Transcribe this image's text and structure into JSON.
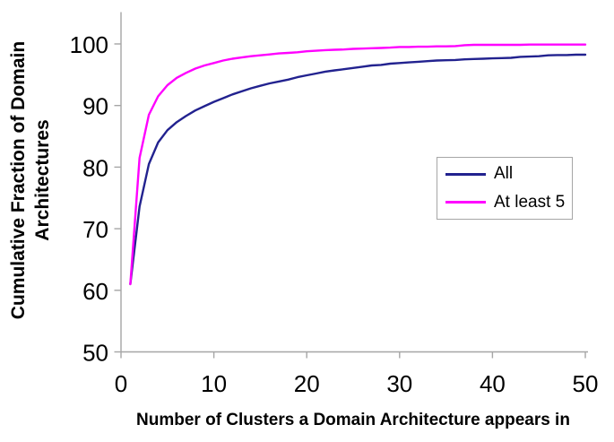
{
  "chart_data": {
    "type": "line",
    "title": "",
    "xlabel": "Number of Clusters a Domain Architecture appears in",
    "ylabel": "Cumulative Fraction of Domain Architectures",
    "ylabel_lines": [
      "Cumulative Fraction of Domain",
      "Architectures"
    ],
    "xlim": [
      0,
      50
    ],
    "ylim": [
      50,
      105
    ],
    "x_ticks": [
      0,
      10,
      20,
      30,
      40,
      50
    ],
    "y_ticks": [
      50,
      60,
      70,
      80,
      90,
      100
    ],
    "grid": false,
    "legend_position": "inside-middle-right",
    "x": [
      1,
      2,
      3,
      4,
      5,
      6,
      7,
      8,
      9,
      10,
      11,
      12,
      13,
      14,
      15,
      16,
      17,
      18,
      19,
      20,
      21,
      22,
      23,
      24,
      25,
      26,
      27,
      28,
      29,
      30,
      31,
      32,
      33,
      34,
      35,
      36,
      37,
      38,
      39,
      40,
      41,
      42,
      43,
      44,
      45,
      46,
      47,
      48,
      49,
      50
    ],
    "series": [
      {
        "name": "All",
        "color": "#22228F",
        "values": [
          61,
          73.6,
          80.5,
          84,
          86,
          87.3,
          88.3,
          89.2,
          89.9,
          90.6,
          91.2,
          91.8,
          92.3,
          92.8,
          93.2,
          93.6,
          93.9,
          94.2,
          94.6,
          94.9,
          95.2,
          95.5,
          95.7,
          95.9,
          96.1,
          96.3,
          96.5,
          96.6,
          96.8,
          96.9,
          97.0,
          97.1,
          97.2,
          97.3,
          97.35,
          97.4,
          97.5,
          97.55,
          97.6,
          97.65,
          97.7,
          97.75,
          97.9,
          97.95,
          98.0,
          98.15,
          98.2,
          98.2,
          98.25,
          98.25
        ]
      },
      {
        "name": "At least 5",
        "color": "#FF00FF",
        "values": [
          61,
          81.5,
          88.5,
          91.5,
          93.3,
          94.5,
          95.3,
          96.0,
          96.5,
          96.9,
          97.3,
          97.6,
          97.8,
          98.0,
          98.15,
          98.3,
          98.45,
          98.55,
          98.65,
          98.8,
          98.9,
          99.0,
          99.05,
          99.1,
          99.2,
          99.25,
          99.3,
          99.35,
          99.4,
          99.5,
          99.5,
          99.55,
          99.55,
          99.6,
          99.6,
          99.65,
          99.8,
          99.85,
          99.85,
          99.85,
          99.85,
          99.85,
          99.85,
          99.9,
          99.9,
          99.9,
          99.9,
          99.9,
          99.9,
          99.9
        ]
      }
    ]
  },
  "colors": {
    "axis": "#A6A6A6",
    "text": "#000000",
    "background": "#FFFFFF"
  }
}
